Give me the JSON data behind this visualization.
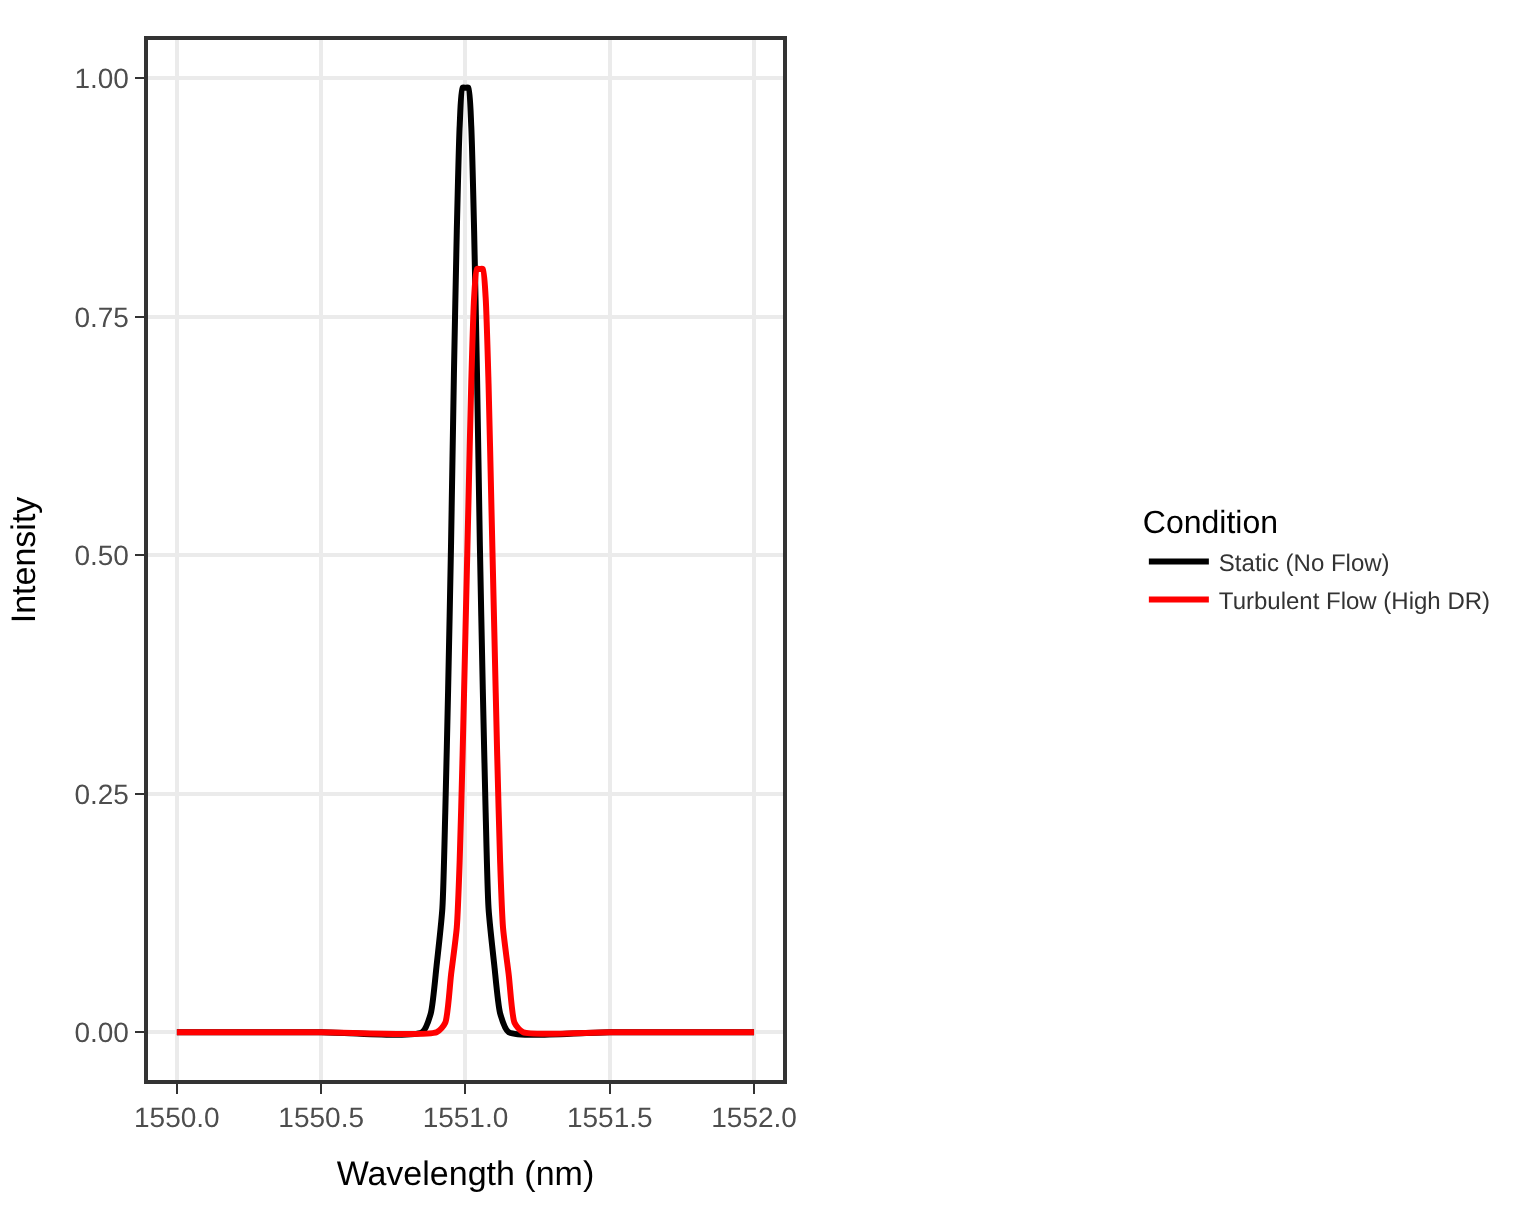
{
  "chart_data": {
    "type": "line",
    "xlabel": "Wavelength (nm)",
    "ylabel": "Intensity",
    "legend_title": "Condition",
    "xlim": [
      1549.9,
      1552.1
    ],
    "xticks": [
      {
        "value": 1550.0,
        "label": "1550.0"
      },
      {
        "value": 1550.5,
        "label": "1550.5"
      },
      {
        "value": 1551.0,
        "label": "1551.0"
      },
      {
        "value": 1551.5,
        "label": "1551.5"
      },
      {
        "value": 1552.0,
        "label": "1552.0"
      }
    ],
    "ylim": [
      -0.05,
      1.04
    ],
    "yticks": [
      {
        "value": 0,
        "label": "0.00"
      },
      {
        "value": 0.25,
        "label": "0.25"
      },
      {
        "value": 0.5,
        "label": "0.50"
      },
      {
        "value": 0.75,
        "label": "0.75"
      },
      {
        "value": 1.0,
        "label": "1.00"
      }
    ],
    "grid": true,
    "legend": "right",
    "line_style": "solid",
    "marker": "none",
    "series": [
      {
        "name": "Static (No Flow)",
        "color": "#000000",
        "x": [
          1550.0,
          1550.5,
          1550.85,
          1550.88,
          1550.9,
          1550.92,
          1550.93,
          1550.94,
          1550.95,
          1550.96,
          1550.97,
          1550.98,
          1550.99,
          1551.0,
          1551.01,
          1551.02,
          1551.03,
          1551.04,
          1551.05,
          1551.06,
          1551.07,
          1551.08,
          1551.1,
          1551.12,
          1551.15,
          1551.5,
          1552.0
        ],
        "values": [
          0,
          0,
          0,
          0.02,
          0.07,
          0.13,
          0.23,
          0.36,
          0.51,
          0.69,
          0.84,
          0.95,
          0.99,
          0.99,
          0.99,
          0.95,
          0.84,
          0.69,
          0.51,
          0.36,
          0.23,
          0.13,
          0.07,
          0.02,
          0,
          0,
          0
        ]
      },
      {
        "name": "Turbulent Flow (High DR)",
        "color": "#ff0000",
        "x": [
          1550.0,
          1550.5,
          1550.9,
          1550.93,
          1550.95,
          1550.97,
          1550.98,
          1550.99,
          1551.0,
          1551.01,
          1551.02,
          1551.03,
          1551.04,
          1551.05,
          1551.06,
          1551.07,
          1551.08,
          1551.09,
          1551.1,
          1551.11,
          1551.12,
          1551.13,
          1551.15,
          1551.17,
          1551.2,
          1551.5,
          1552.0
        ],
        "values": [
          0,
          0,
          0,
          0.01,
          0.06,
          0.11,
          0.18,
          0.29,
          0.42,
          0.55,
          0.68,
          0.77,
          0.8,
          0.8,
          0.8,
          0.77,
          0.68,
          0.55,
          0.42,
          0.29,
          0.18,
          0.11,
          0.06,
          0.01,
          0,
          0,
          0
        ]
      }
    ]
  }
}
